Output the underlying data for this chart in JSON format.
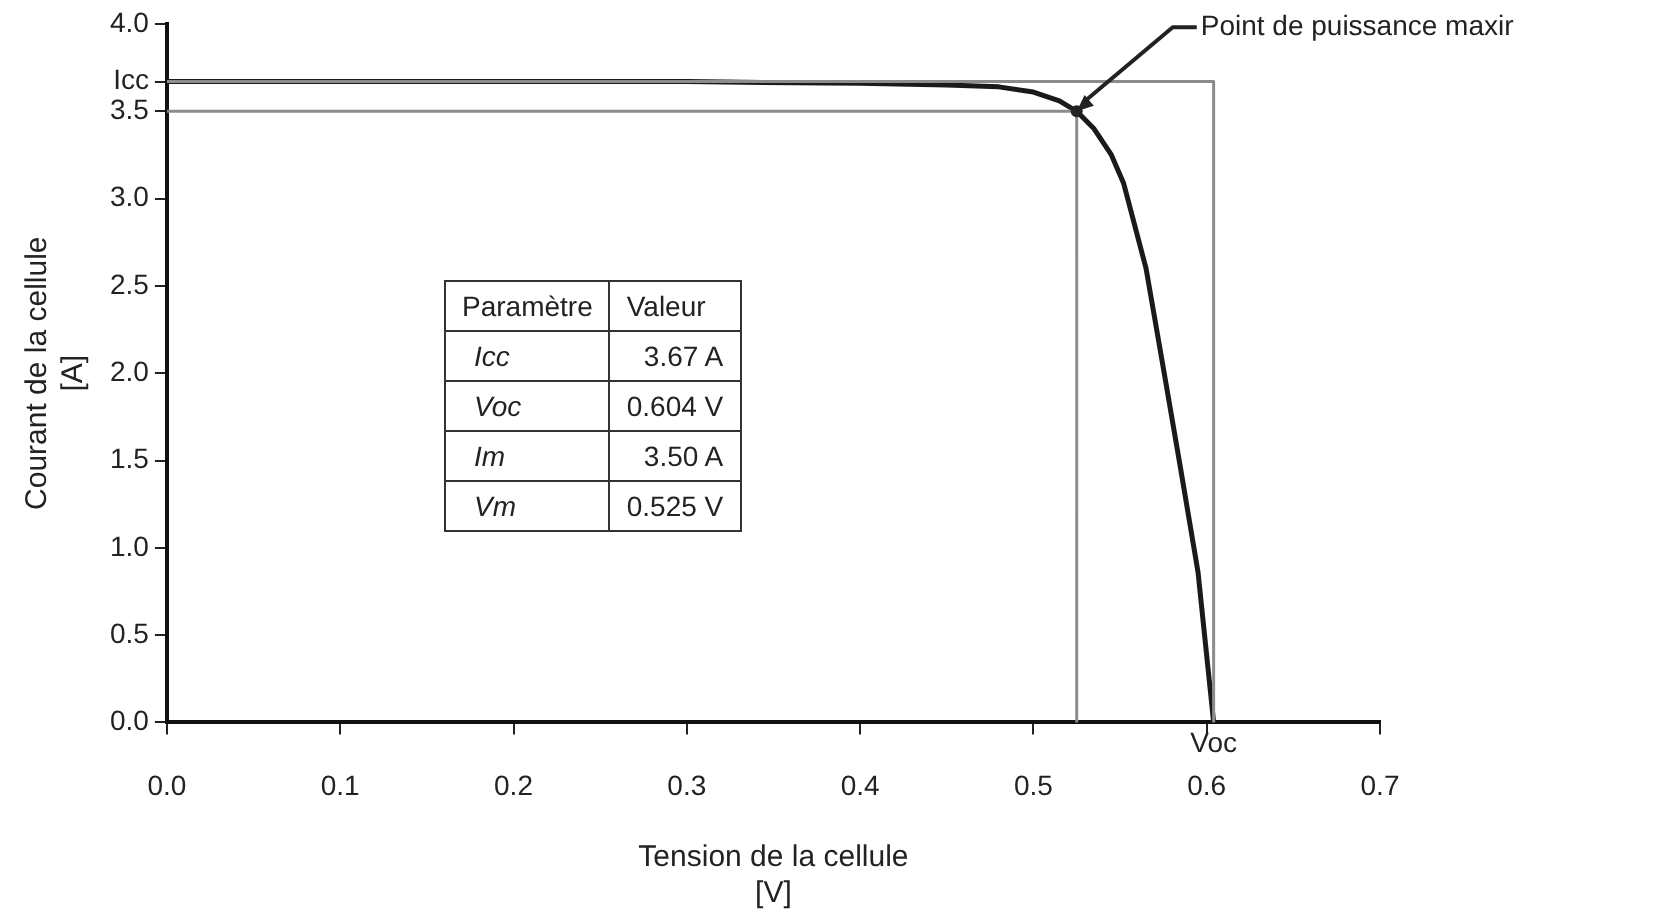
{
  "chart_data": {
    "type": "line",
    "xlabel": "Tension de la cellule\n[V]",
    "ylabel": "Courant de la cellule\n[A]",
    "xlim": [
      0,
      0.7
    ],
    "ylim": [
      0,
      4.0
    ],
    "xticks": [
      {
        "value": 0,
        "label": "0.0"
      },
      {
        "value": 0.1,
        "label": "0.1"
      },
      {
        "value": 0.2,
        "label": "0.2"
      },
      {
        "value": 0.3,
        "label": "0.3"
      },
      {
        "value": 0.4,
        "label": "0.4"
      },
      {
        "value": 0.5,
        "label": "0.5"
      },
      {
        "value": 0.6,
        "label": "0.6"
      },
      {
        "value": 0.7,
        "label": "0.7"
      }
    ],
    "yticks": [
      {
        "value": 0,
        "label": "0.0"
      },
      {
        "value": 0.5,
        "label": "0.5"
      },
      {
        "value": 1,
        "label": "1.0"
      },
      {
        "value": 1.5,
        "label": "1.5"
      },
      {
        "value": 2,
        "label": "2.0"
      },
      {
        "value": 2.5,
        "label": "2.5"
      },
      {
        "value": 3,
        "label": "3.0"
      },
      {
        "value": 3.5,
        "label": "3.5"
      },
      {
        "value": 3.67,
        "label": "Icc"
      },
      {
        "value": 4,
        "label": "4.0"
      }
    ],
    "series": [
      {
        "color": "#8c8c8c",
        "x": [
          0,
          0.604,
          0.604
        ],
        "values": [
          3.67,
          3.67,
          0
        ]
      },
      {
        "color": "#8c8c8c",
        "x": [
          0,
          0.525,
          0.525
        ],
        "values": [
          3.5,
          3.5,
          0
        ]
      },
      {
        "color": "#1a1a1a",
        "x": [
          0,
          0.1,
          0.2,
          0.3,
          0.4,
          0.45,
          0.48,
          0.5,
          0.515,
          0.525,
          0.535,
          0.545,
          0.552,
          0.565,
          0.576,
          0.585,
          0.595,
          0.604
        ],
        "values": [
          3.67,
          3.67,
          3.67,
          3.67,
          3.66,
          3.65,
          3.64,
          3.61,
          3.56,
          3.5,
          3.4,
          3.25,
          3.09,
          2.6,
          1.97,
          1.45,
          0.86,
          0
        ]
      }
    ],
    "annotations": [
      {
        "text": "Point de puissance maxir",
        "x": 0.525,
        "y": 3.5
      },
      {
        "text": "Voc",
        "x": 0.604,
        "y": 0
      },
      "Paramètre",
      "Valeur",
      "Icc",
      "3.67 A",
      "Voc",
      "0.604 V",
      "Im",
      "3.50 A",
      "Vm",
      "0.525 V"
    ],
    "grid": false,
    "legend": false,
    "marker": "none",
    "line_style": "solid"
  }
}
